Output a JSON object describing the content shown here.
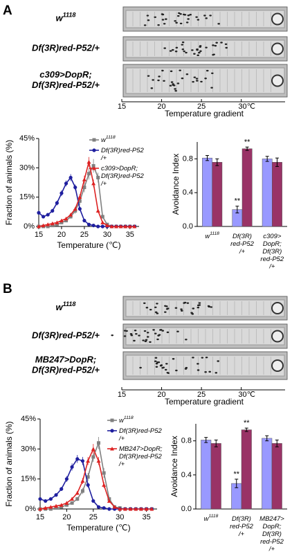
{
  "panels": [
    {
      "label": "A",
      "genotypes": [
        "w1118",
        "Df(3R)red-P52/+",
        "c309>DopR;\nDf(3R)red-P52/+"
      ],
      "gradient": {
        "xlabel": "Temperature gradient",
        "xlim": [
          15,
          35.5
        ],
        "xticks": [
          15,
          20,
          25,
          {
            "value": 30,
            "label": "30℃"
          }
        ]
      }
    },
    {
      "label": "B",
      "genotypes": [
        "w1118",
        "Df(3R)red-P52/+",
        "MB247>DopR;\nDf(3R)red-P52/+"
      ],
      "gradient": {
        "xlabel": "Temperature gradient",
        "xlim": [
          15,
          35.5
        ],
        "xticks": [
          15,
          20,
          25,
          {
            "value": 30,
            "label": "30℃"
          }
        ]
      }
    }
  ],
  "chart_data": [
    {
      "type": "line",
      "xlabel": "Temperature (℃)",
      "ylabel": "Fraction of animals (%)",
      "xlim": [
        15,
        37
      ],
      "xticks": [
        15,
        20,
        25,
        30,
        35
      ],
      "ylim": [
        0,
        45
      ],
      "yticks": [
        {
          "value": 0,
          "label": "0%"
        },
        {
          "value": 15,
          "label": "15%"
        },
        {
          "value": 30,
          "label": "30%"
        },
        {
          "value": 45,
          "label": "45%"
        }
      ],
      "legend": "upper right",
      "x": [
        15,
        16,
        17,
        18,
        19,
        20,
        21,
        22,
        23,
        24,
        25,
        26,
        27,
        28,
        29,
        30,
        31,
        32,
        33,
        34,
        35,
        36
      ],
      "series": [
        {
          "name": "w1118",
          "color": "#808080",
          "marker": "square",
          "values": [
            0,
            0,
            0,
            0.5,
            1,
            2,
            3,
            5,
            8,
            13,
            20,
            27,
            31,
            25,
            5,
            1,
            0,
            0,
            0,
            0,
            0,
            0
          ],
          "errors": [
            0,
            0,
            0,
            0.3,
            0.5,
            0.5,
            0.8,
            1,
            1.5,
            2,
            2.5,
            3,
            3.5,
            2.5,
            1,
            0.5,
            0,
            0,
            0,
            0,
            0,
            0
          ]
        },
        {
          "name": "Df(3R)red-P52\n/+",
          "color": "#1f1f9f",
          "marker": "circle",
          "values": [
            7,
            5,
            6,
            8,
            12,
            17,
            22,
            25,
            20,
            9,
            3,
            1,
            0.5,
            0,
            0,
            0,
            0,
            0,
            0,
            0,
            0,
            0
          ],
          "errors": [
            1,
            0.8,
            0.8,
            1,
            1.2,
            1.5,
            1.5,
            1.8,
            1.5,
            1,
            0.5,
            0.3,
            0.3,
            0,
            0,
            0,
            0,
            0,
            0,
            0,
            0,
            0
          ]
        },
        {
          "name": "c309>DopR;\nDf(3R)red-P52\n/+",
          "color": "#dd2222",
          "marker": "triangle",
          "values": [
            0,
            0.5,
            1,
            1.5,
            2,
            3,
            4,
            6,
            9,
            15,
            24,
            33,
            22,
            8,
            2,
            0.5,
            0,
            0,
            0,
            0,
            0,
            0
          ],
          "errors": [
            0,
            0.3,
            0.3,
            0.4,
            0.5,
            0.5,
            0.6,
            0.8,
            1,
            1.5,
            2,
            2.5,
            2,
            1,
            0.5,
            0.3,
            0,
            0,
            0,
            0,
            0,
            0
          ]
        }
      ]
    },
    {
      "type": "bar",
      "ylabel": "Avoidance Index",
      "ylim": [
        0,
        1
      ],
      "yticks": [
        {
          "value": 0,
          "label": "0.0"
        },
        0.4,
        0.8
      ],
      "categories": [
        "w1118",
        "Df(3R)\nred-P52\n/+",
        "c309>\nDopR;\nDf(3R)\nred-P52\n/+"
      ],
      "series": [
        {
          "color": "#9999ff",
          "values": [
            0.81,
            0.2,
            0.8
          ],
          "errors": [
            0.03,
            0.04,
            0.03
          ],
          "annotations": [
            null,
            "**",
            null
          ]
        },
        {
          "color": "#993366",
          "values": [
            0.76,
            0.92,
            0.76
          ],
          "errors": [
            0.04,
            0.02,
            0.05
          ],
          "annotations": [
            null,
            "**",
            null
          ]
        }
      ]
    },
    {
      "type": "line",
      "xlabel": "Temperature (℃)",
      "ylabel": "Fraction of animals (%)",
      "xlim": [
        15,
        37
      ],
      "xticks": [
        15,
        20,
        25,
        30,
        35
      ],
      "ylim": [
        0,
        45
      ],
      "yticks": [
        {
          "value": 0,
          "label": "0%"
        },
        {
          "value": 15,
          "label": "15%"
        },
        {
          "value": 30,
          "label": "30%"
        },
        {
          "value": 45,
          "label": "45%"
        }
      ],
      "legend": "upper right",
      "x": [
        15,
        16,
        17,
        18,
        19,
        20,
        21,
        22,
        23,
        24,
        25,
        26,
        27,
        28,
        29,
        30,
        31,
        32,
        33,
        34,
        35,
        36
      ],
      "series": [
        {
          "name": "w1118",
          "color": "#808080",
          "marker": "square",
          "values": [
            0,
            0,
            0,
            0.5,
            1,
            2,
            3,
            5,
            9,
            16,
            26,
            33,
            18,
            5,
            1,
            0.5,
            0,
            0,
            0,
            0,
            0,
            0
          ],
          "errors": [
            0,
            0,
            0,
            0.3,
            0.5,
            0.5,
            0.8,
            1,
            1.5,
            2,
            2.5,
            3,
            2.5,
            1,
            0.5,
            0.3,
            0,
            0,
            0,
            0,
            0,
            0
          ]
        },
        {
          "name": "Df(3R)red-P52\n/+",
          "color": "#1f1f9f",
          "marker": "circle",
          "values": [
            5,
            4,
            5,
            7,
            10,
            15,
            21,
            25,
            24,
            12,
            4,
            1,
            0.5,
            0,
            0,
            0,
            0,
            0,
            0,
            0,
            0,
            0
          ],
          "errors": [
            0.8,
            0.6,
            0.7,
            0.8,
            1,
            1.5,
            1.8,
            2,
            2,
            1.2,
            0.6,
            0.3,
            0.3,
            0,
            0,
            0,
            0,
            0,
            0,
            0,
            0,
            0
          ]
        },
        {
          "name": "MB247>DopR;\nDf(3R)red-P52\n/+",
          "color": "#dd2222",
          "marker": "triangle",
          "values": [
            0,
            0.5,
            1,
            1.5,
            2,
            3,
            5,
            8,
            14,
            24,
            30,
            24,
            12,
            4,
            1,
            0,
            0,
            0,
            0,
            0,
            0,
            0
          ],
          "errors": [
            0,
            0.3,
            0.3,
            0.4,
            0.5,
            0.5,
            0.8,
            1,
            1.5,
            2,
            2.5,
            2,
            1.5,
            0.8,
            0.4,
            0,
            0,
            0,
            0,
            0,
            0,
            0
          ]
        }
      ]
    },
    {
      "type": "bar",
      "ylabel": "Avoidance Index",
      "ylim": [
        0,
        1
      ],
      "yticks": [
        {
          "value": 0,
          "label": "0.0"
        },
        0.4,
        0.8
      ],
      "categories": [
        "w1118",
        "Df(3R)\nred-P52\n/+",
        "MB247>\nDopR;\nDf(3R)\nred-P52\n/+"
      ],
      "series": [
        {
          "color": "#9999ff",
          "values": [
            0.81,
            0.3,
            0.83
          ],
          "errors": [
            0.03,
            0.05,
            0.03
          ],
          "annotations": [
            null,
            "**",
            null
          ]
        },
        {
          "color": "#993366",
          "values": [
            0.77,
            0.93,
            0.77
          ],
          "errors": [
            0.04,
            0.02,
            0.04
          ],
          "annotations": [
            null,
            "**",
            null
          ]
        }
      ]
    }
  ]
}
